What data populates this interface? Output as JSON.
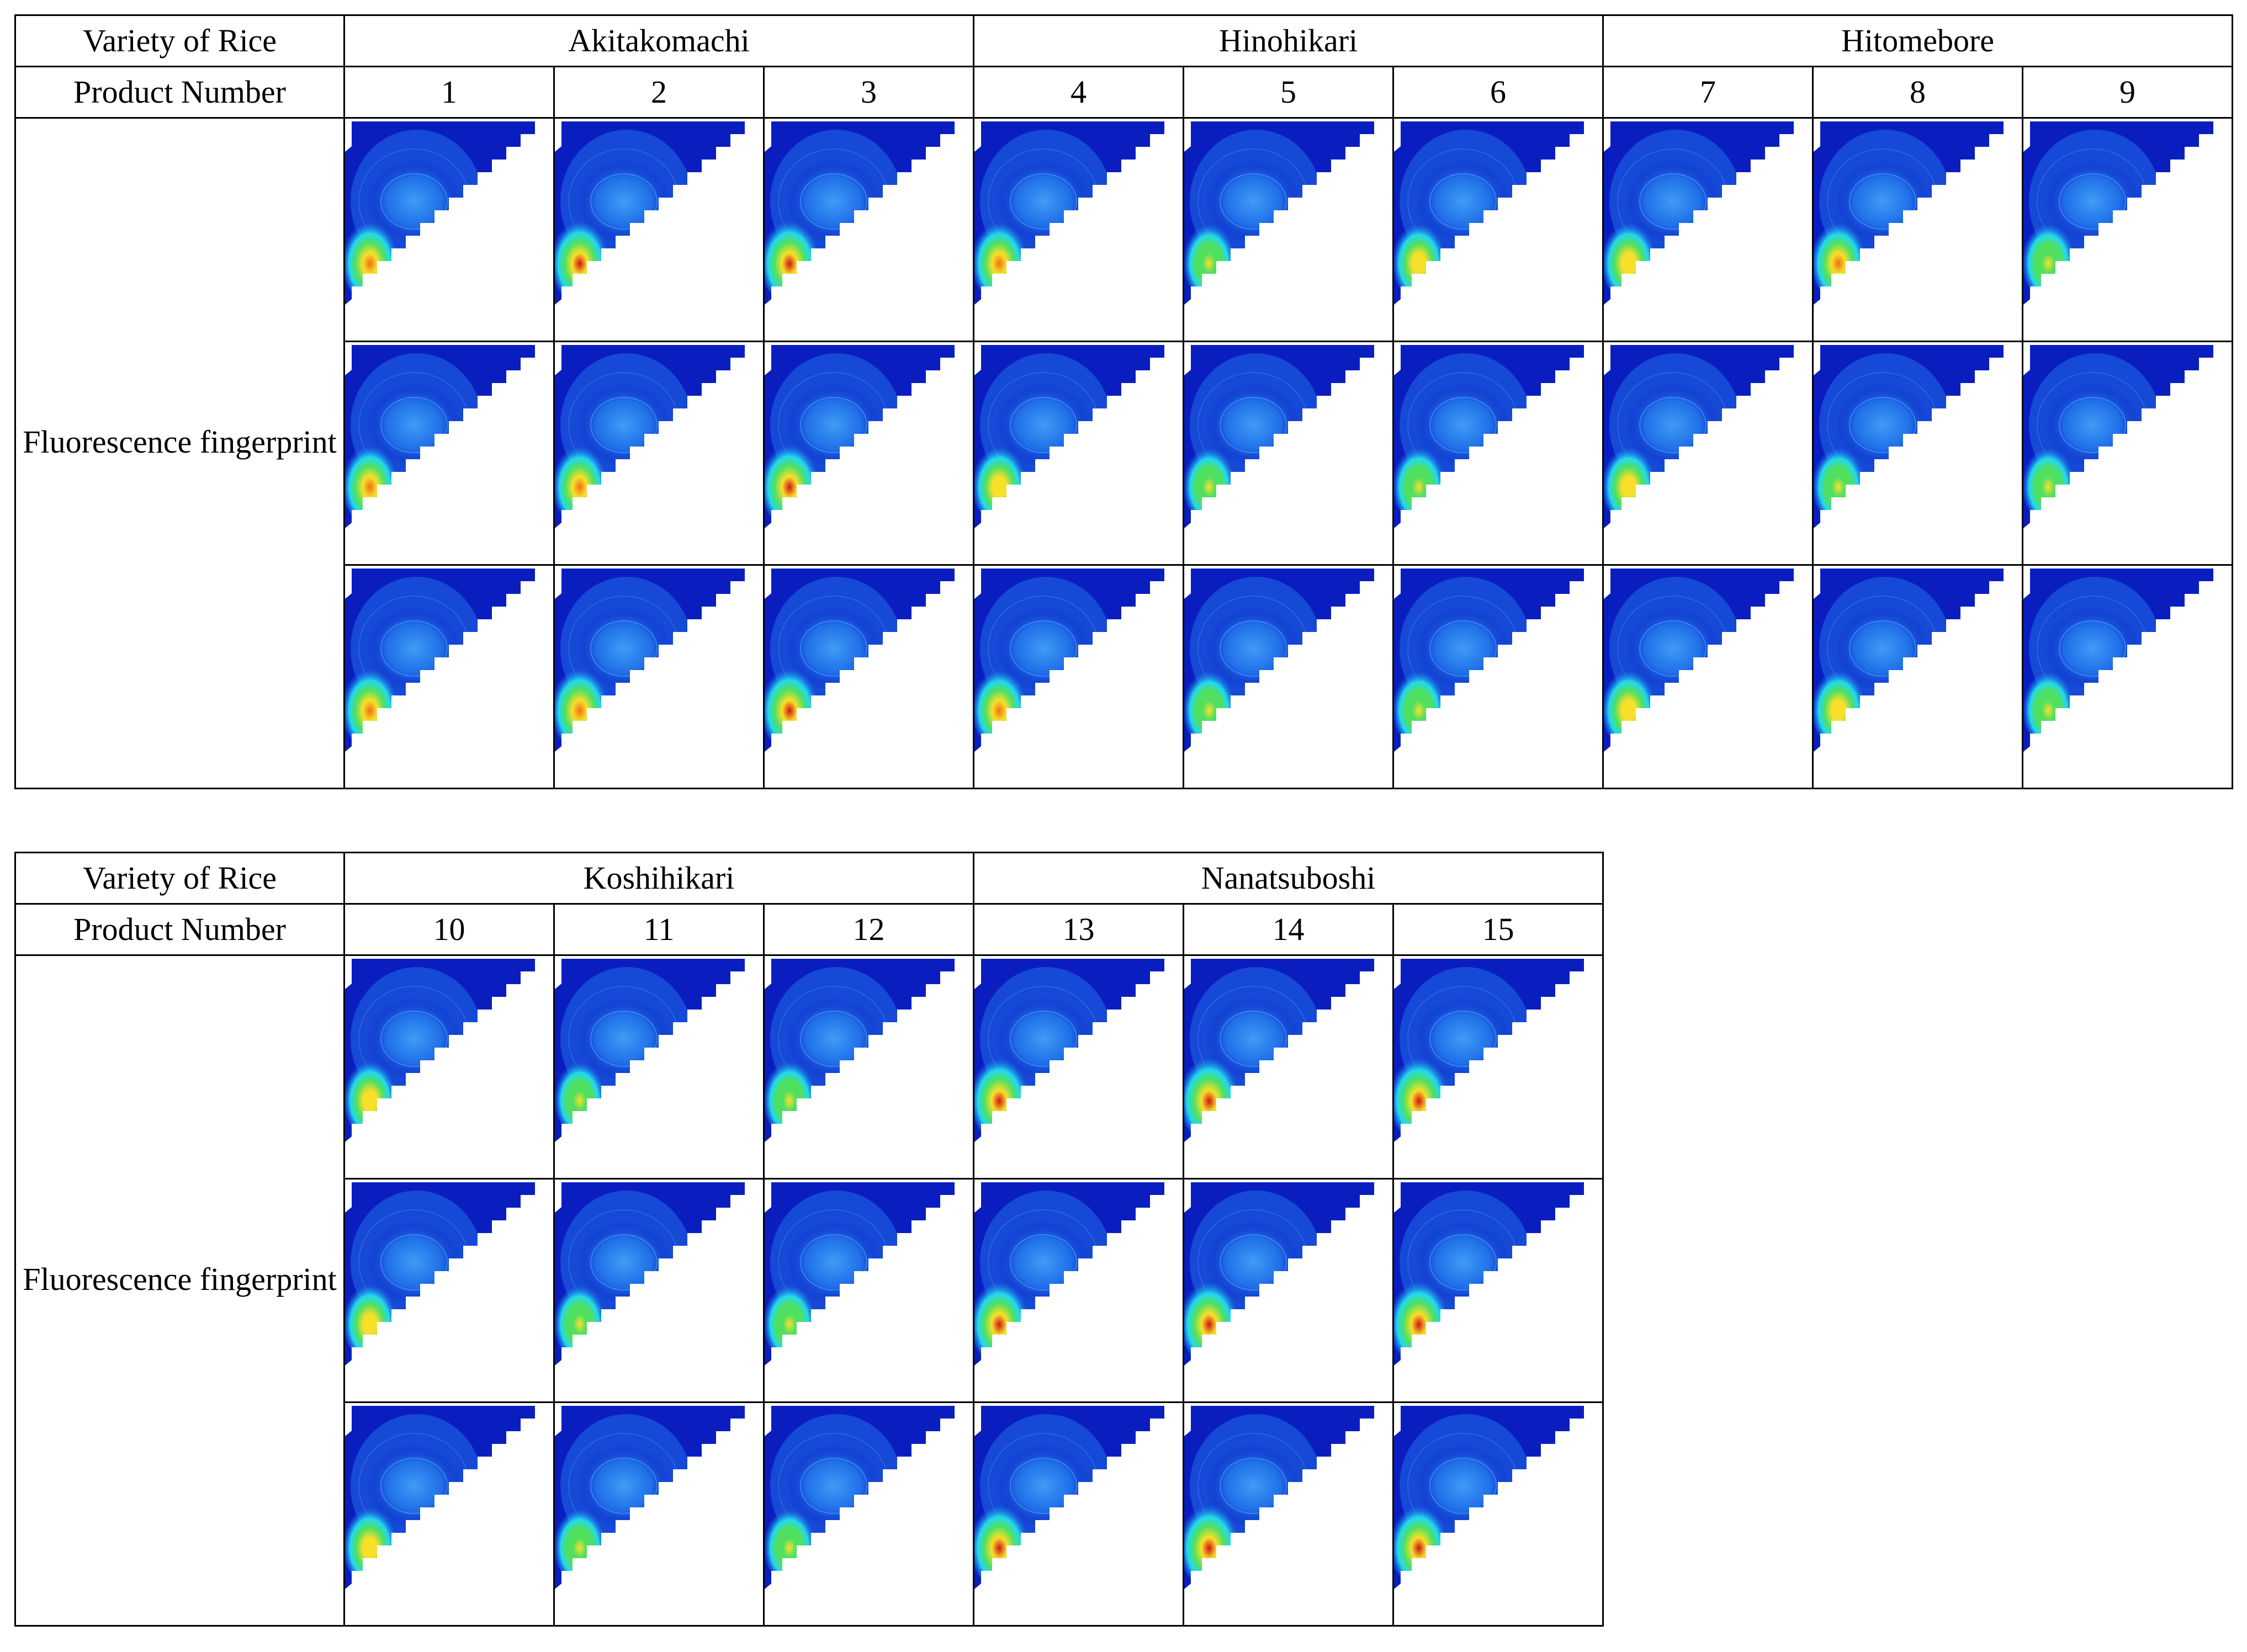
{
  "colors": {
    "bg_blue": "#0a1ec0",
    "mid_blue": "#1f6ee8",
    "cyan": "#22d8f0",
    "green": "#50e060",
    "yellow": "#f8e02a",
    "orange": "#f07018",
    "red": "#d21414"
  },
  "tables": [
    {
      "variety_label": "Variety of Rice",
      "product_label": "Product Number",
      "row_label": "Fluorescence fingerprint",
      "varieties": [
        {
          "name": "Akitakomachi",
          "span": 3
        },
        {
          "name": "Hinohikari",
          "span": 3
        },
        {
          "name": "Hitomebore",
          "span": 3
        }
      ],
      "products": [
        "1",
        "2",
        "3",
        "4",
        "5",
        "6",
        "7",
        "8",
        "9"
      ],
      "intensity": [
        [
          0.8,
          0.9,
          0.92,
          0.75,
          0.55,
          0.62,
          0.7,
          0.72,
          0.6
        ],
        [
          0.78,
          0.72,
          0.9,
          0.68,
          0.55,
          0.6,
          0.64,
          0.58,
          0.56
        ],
        [
          0.8,
          0.85,
          0.88,
          0.72,
          0.58,
          0.6,
          0.68,
          0.66,
          0.52
        ]
      ]
    },
    {
      "variety_label": "Variety of Rice",
      "product_label": "Product Number",
      "row_label": "Fluorescence fingerprint",
      "varieties": [
        {
          "name": "Koshihikari",
          "span": 3
        },
        {
          "name": "Nanatsuboshi",
          "span": 3
        }
      ],
      "products": [
        "10",
        "11",
        "12",
        "13",
        "14",
        "15"
      ],
      "intensity": [
        [
          0.62,
          0.5,
          0.6,
          0.92,
          0.98,
          0.95
        ],
        [
          0.64,
          0.55,
          0.58,
          0.9,
          0.92,
          0.95
        ],
        [
          0.68,
          0.56,
          0.55,
          0.92,
          0.96,
          0.86
        ]
      ]
    }
  ]
}
